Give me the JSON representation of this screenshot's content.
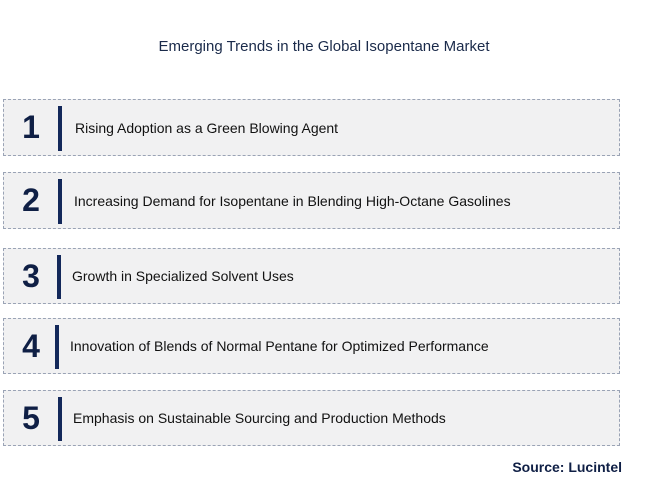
{
  "title": "Emerging Trends in the Global Isopentane Market",
  "trends": [
    {
      "number": "1",
      "label": "Rising Adoption as a Green Blowing Agent"
    },
    {
      "number": "2",
      "label": "Increasing Demand for Isopentane in Blending High-Octane Gasolines"
    },
    {
      "number": "3",
      "label": "Growth in Specialized Solvent Uses"
    },
    {
      "number": "4",
      "label": "Innovation of Blends of Normal Pentane for Optimized Performance"
    },
    {
      "number": "5",
      "label": "Emphasis on Sustainable Sourcing and Production Methods"
    }
  ],
  "source": "Source: Lucintel",
  "colors": {
    "accent_bar": "#13285a",
    "number_text": "#0f1f45",
    "row_background": "#f1f1f2",
    "row_border": "#9aa3b5"
  }
}
